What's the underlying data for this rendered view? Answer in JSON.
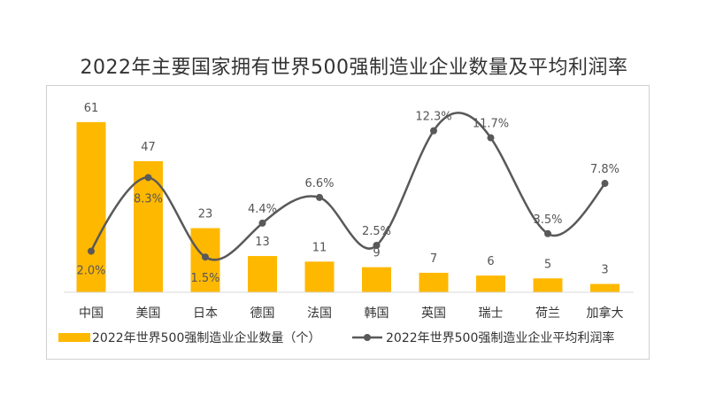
{
  "chart_data": {
    "type": "bar",
    "title": "2022年主要国家拥有世界500强制造业企业数量及平均利润率",
    "categories": [
      "中国",
      "美国",
      "日本",
      "德国",
      "法国",
      "韩国",
      "英国",
      "瑞士",
      "荷兰",
      "加拿大"
    ],
    "series": [
      {
        "name": "2022年世界500强制造业企业数量（个）",
        "type": "bar",
        "color": "#FFB800",
        "values": [
          61,
          47,
          23,
          13,
          11,
          9,
          7,
          6,
          5,
          3
        ],
        "labels": [
          "61",
          "47",
          "23",
          "13",
          "11",
          "9",
          "7",
          "6",
          "5",
          "3"
        ]
      },
      {
        "name": "2022年世界500强制造业企业平均利润率",
        "type": "line",
        "smooth": true,
        "color": "#595959",
        "values": [
          2.0,
          8.3,
          1.5,
          4.4,
          6.6,
          2.5,
          12.3,
          11.7,
          3.5,
          7.8
        ],
        "labels": [
          "2.0%",
          "8.3%",
          "1.5%",
          "4.4%",
          "6.6%",
          "2.5%",
          "12.3%",
          "11.7%",
          "3.5%",
          "7.8%"
        ]
      }
    ],
    "grid": false,
    "legend_position": "bottom"
  }
}
